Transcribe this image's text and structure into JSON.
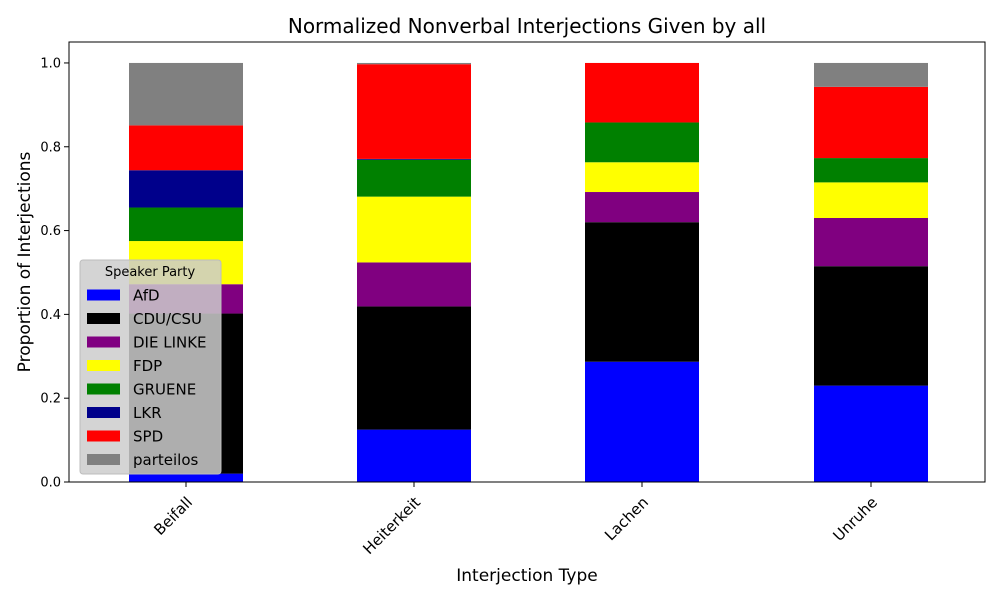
{
  "chart_data": {
    "type": "bar",
    "stacked": true,
    "title": "Normalized Nonverbal Interjections Given by all",
    "xlabel": "Interjection Type",
    "ylabel": "Proportion of Interjections",
    "categories": [
      "Beifall",
      "Heiterkeit",
      "Lachen",
      "Unruhe"
    ],
    "ylim": [
      0,
      1.05
    ],
    "yticks": [
      "0.0",
      "0.2",
      "0.4",
      "0.6",
      "0.8",
      "1.0"
    ],
    "ytick_values": [
      0.0,
      0.2,
      0.4,
      0.6,
      0.8,
      1.0
    ],
    "grid": false,
    "legend": {
      "title": "Speaker Party",
      "placement": "lower-left"
    },
    "series": [
      {
        "name": "AfD",
        "color": "#0000ff",
        "values": [
          0.02,
          0.125,
          0.287,
          0.23
        ]
      },
      {
        "name": "CDU/CSU",
        "color": "#000000",
        "values": [
          0.382,
          0.294,
          0.333,
          0.285
        ]
      },
      {
        "name": "DIE LINKE",
        "color": "#800080",
        "values": [
          0.07,
          0.105,
          0.072,
          0.115
        ]
      },
      {
        "name": "FDP",
        "color": "#ffff00",
        "values": [
          0.103,
          0.157,
          0.071,
          0.085
        ]
      },
      {
        "name": "GRUENE",
        "color": "#008000",
        "values": [
          0.08,
          0.088,
          0.095,
          0.058
        ]
      },
      {
        "name": "LKR",
        "color": "#00008b",
        "values": [
          0.089,
          0.002,
          0.0,
          0.0
        ]
      },
      {
        "name": "SPD",
        "color": "#ff0000",
        "values": [
          0.107,
          0.226,
          0.142,
          0.17
        ]
      },
      {
        "name": "parteilos",
        "color": "#808080",
        "values": [
          0.149,
          0.003,
          0.0,
          0.057
        ]
      }
    ]
  }
}
